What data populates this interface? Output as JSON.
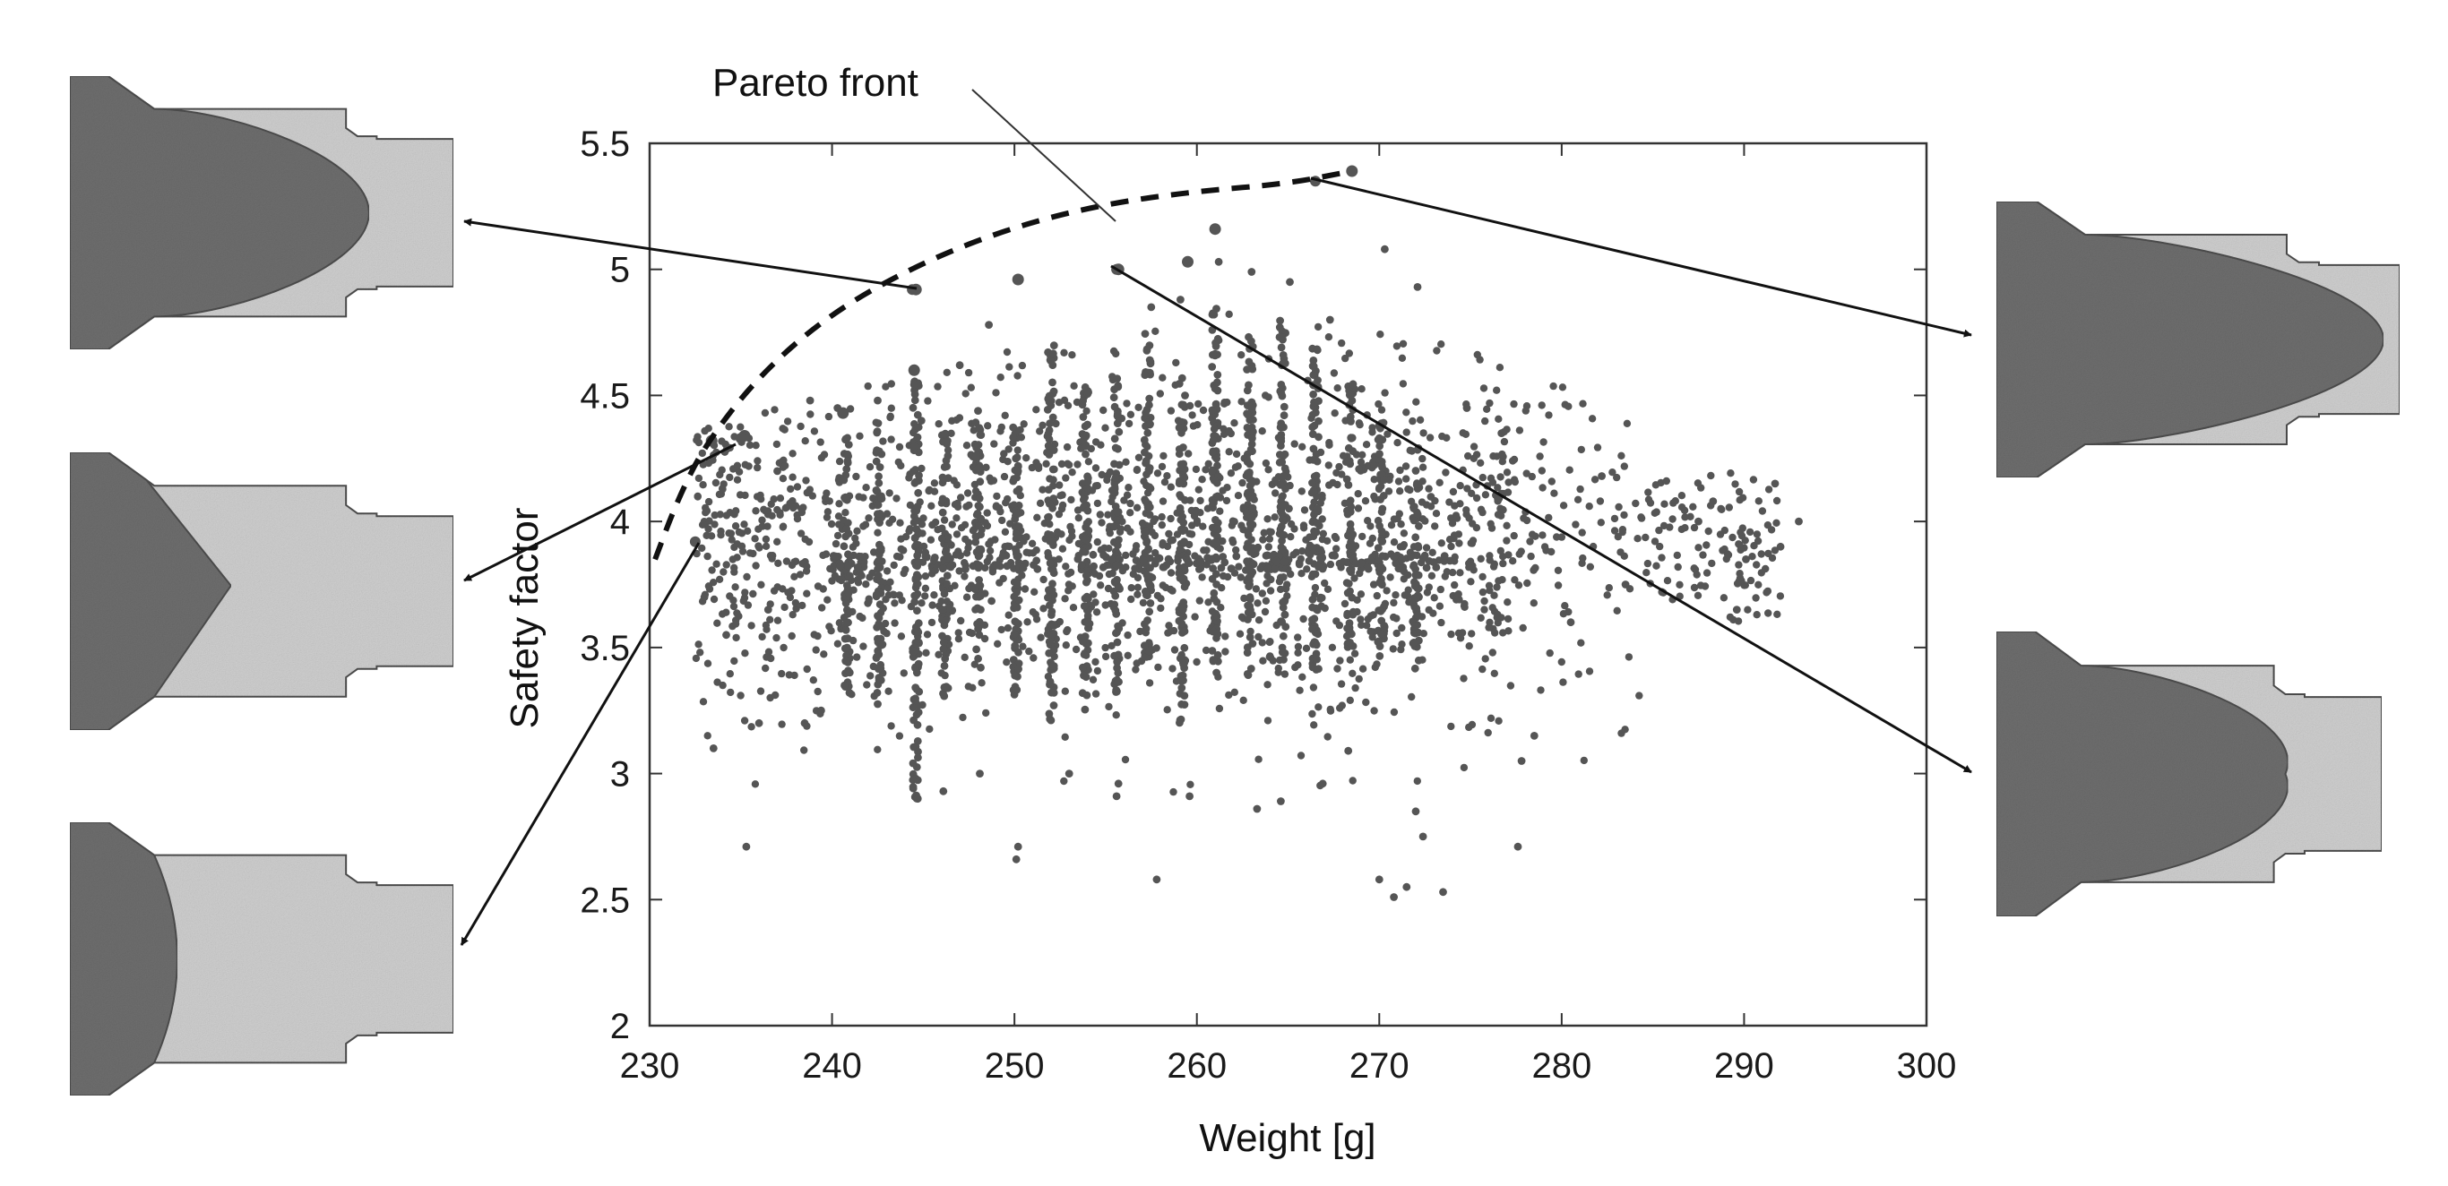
{
  "chart_data": {
    "type": "scatter",
    "title": "",
    "xlabel": "Weight [g]",
    "ylabel": "Safety factor",
    "xlim": [
      230,
      300
    ],
    "ylim": [
      2,
      5.5
    ],
    "x_ticks": [
      230,
      240,
      250,
      260,
      270,
      280,
      290,
      300
    ],
    "y_ticks": [
      2,
      2.5,
      3,
      3.5,
      4,
      4.5,
      5,
      5.5
    ],
    "x_tick_labels": [
      "230",
      "240",
      "250",
      "260",
      "270",
      "280",
      "290",
      "300"
    ],
    "y_tick_labels": [
      "2",
      "2.5",
      "3",
      "3.5",
      "4",
      "4.5",
      "5",
      "5.5"
    ],
    "grid": false,
    "marker_color": "#555555",
    "pareto_color": "#111111",
    "annotation": {
      "text": "Pareto front"
    },
    "pareto_front": {
      "style": "dashed",
      "points": [
        [
          230.3,
          3.85
        ],
        [
          231.5,
          4.08
        ],
        [
          233,
          4.3
        ],
        [
          236,
          4.58
        ],
        [
          240,
          4.83
        ],
        [
          245,
          5.03
        ],
        [
          250,
          5.17
        ],
        [
          255,
          5.26
        ],
        [
          260,
          5.31
        ],
        [
          265,
          5.34
        ],
        [
          268.5,
          5.39
        ]
      ]
    },
    "pareto_points": [
      [
        233.4,
        4.32
      ],
      [
        235.2,
        4.34
      ],
      [
        240.6,
        4.43
      ],
      [
        244.5,
        4.6
      ],
      [
        244.6,
        4.92
      ],
      [
        250.2,
        4.96
      ],
      [
        255.7,
        5.0
      ],
      [
        259.5,
        5.03
      ],
      [
        261.0,
        5.16
      ],
      [
        268.5,
        5.39
      ]
    ],
    "highlighted_points": [
      [
        232.5,
        3.92
      ],
      [
        235.0,
        4.33
      ],
      [
        244.4,
        4.92
      ],
      [
        255.6,
        5.0
      ],
      [
        266.5,
        5.35
      ]
    ],
    "series": [
      {
        "columns": [
          {
            "x": 240.8,
            "ymin": 3.3,
            "ymax": 4.35
          },
          {
            "x": 242.6,
            "ymin": 3.25,
            "ymax": 4.4
          },
          {
            "x": 244.6,
            "ymin": 2.9,
            "ymax": 4.6
          },
          {
            "x": 246.2,
            "ymin": 3.3,
            "ymax": 4.35
          },
          {
            "x": 248.0,
            "ymin": 3.4,
            "ymax": 4.45
          },
          {
            "x": 250.1,
            "ymin": 3.3,
            "ymax": 4.4
          },
          {
            "x": 252.0,
            "ymin": 3.2,
            "ymax": 4.7
          },
          {
            "x": 253.9,
            "ymin": 3.25,
            "ymax": 4.55
          },
          {
            "x": 255.6,
            "ymin": 3.3,
            "ymax": 4.6
          },
          {
            "x": 257.3,
            "ymin": 3.45,
            "ymax": 4.75
          },
          {
            "x": 259.2,
            "ymin": 3.2,
            "ymax": 4.6
          },
          {
            "x": 261.0,
            "ymin": 3.4,
            "ymax": 4.85
          },
          {
            "x": 262.9,
            "ymin": 3.35,
            "ymax": 4.75
          },
          {
            "x": 264.7,
            "ymin": 3.45,
            "ymax": 4.8
          },
          {
            "x": 266.5,
            "ymin": 3.4,
            "ymax": 4.7
          },
          {
            "x": 268.4,
            "ymin": 3.5,
            "ymax": 4.55
          },
          {
            "x": 270.1,
            "ymin": 3.45,
            "ymax": 4.4
          },
          {
            "x": 272.0,
            "ymin": 3.4,
            "ymax": 4.3
          }
        ],
        "scattered": [
          [
            233.5,
            3.1
          ],
          [
            235.3,
            2.71
          ],
          [
            236.0,
            3.2
          ],
          [
            238.5,
            3.2
          ],
          [
            239.4,
            3.25
          ],
          [
            244.7,
            2.9
          ],
          [
            246.1,
            2.93
          ],
          [
            248.1,
            3.0
          ],
          [
            250.2,
            2.71
          ],
          [
            250.1,
            2.66
          ],
          [
            253.0,
            3.0
          ],
          [
            255.6,
            2.91
          ],
          [
            255.7,
            2.96
          ],
          [
            257.8,
            2.58
          ],
          [
            259.6,
            2.91
          ],
          [
            263.3,
            2.86
          ],
          [
            264.6,
            2.89
          ],
          [
            266.9,
            2.96
          ],
          [
            268.3,
            3.09
          ],
          [
            270.0,
            2.58
          ],
          [
            270.8,
            2.51
          ],
          [
            271.5,
            2.55
          ],
          [
            272.0,
            2.85
          ],
          [
            272.4,
            2.75
          ],
          [
            273.5,
            2.53
          ],
          [
            277.6,
            2.71
          ],
          [
            277.8,
            3.05
          ],
          [
            278.5,
            3.15
          ],
          [
            280.5,
            3.6
          ],
          [
            282.2,
            4.18
          ],
          [
            283.5,
            3.75
          ],
          [
            285.5,
            3.72
          ],
          [
            287.5,
            4.0
          ],
          [
            288.3,
            4.08
          ],
          [
            289.6,
            3.65
          ],
          [
            291.7,
            4.15
          ],
          [
            292.0,
            3.9
          ],
          [
            293.0,
            4.0
          ],
          [
            290.1,
            3.85
          ],
          [
            276.7,
            4.35
          ],
          [
            274.8,
            4.45
          ],
          [
            272.1,
            4.93
          ],
          [
            270.3,
            5.08
          ],
          [
            267.3,
            4.8
          ],
          [
            265.1,
            4.95
          ],
          [
            263.0,
            4.99
          ],
          [
            261.2,
            5.03
          ],
          [
            259.1,
            4.88
          ],
          [
            257.5,
            4.85
          ],
          [
            250.2,
            4.2
          ],
          [
            248.6,
            4.78
          ],
          [
            247.0,
            4.62
          ],
          [
            244.9,
            4.4
          ],
          [
            242.5,
            4.48
          ],
          [
            240.3,
            4.45
          ],
          [
            238.8,
            4.48
          ],
          [
            237.0,
            4.2
          ],
          [
            233.0,
            3.7
          ],
          [
            234.2,
            3.55
          ],
          [
            236.5,
            3.65
          ]
        ]
      }
    ]
  },
  "thumbnails": [
    {
      "palette": {
        "outline": "#4d4d4d",
        "body": "#cfcfcf",
        "core": "#6e6e6e"
      },
      "core_type": "pointed",
      "core_depth": 0.78
    },
    {
      "palette": {
        "outline": "#4d4d4d",
        "body": "#cfcfcf",
        "core": "#6e6e6e"
      },
      "core_type": "blunt",
      "core_depth": 0.42
    },
    {
      "palette": {
        "outline": "#4d4d4d",
        "body": "#cfcfcf",
        "core": "#6e6e6e"
      },
      "core_type": "flat",
      "core_depth": 0.32
    },
    {
      "palette": {
        "outline": "#4d4d4d",
        "body": "#cfcfcf",
        "core": "#6e6e6e"
      },
      "core_type": "long-pointed",
      "core_depth": 0.96
    },
    {
      "palette": {
        "outline": "#4d4d4d",
        "body": "#cfcfcf",
        "core": "#6e6e6e"
      },
      "core_type": "round",
      "core_depth": 0.75
    }
  ]
}
